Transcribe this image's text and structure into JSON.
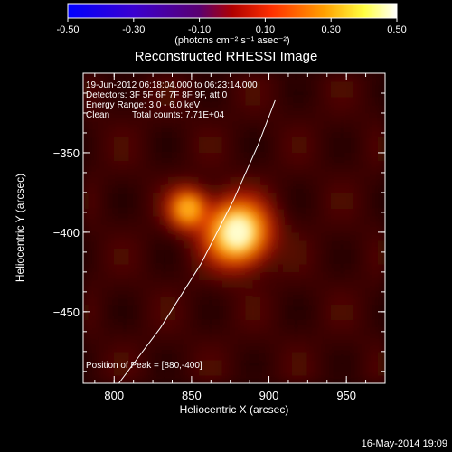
{
  "colorbar": {
    "ticks": [
      "-0.50",
      "-0.30",
      "-0.10",
      "0.10",
      "0.30",
      "0.50"
    ],
    "units": "(photons cm⁻² s⁻¹ asec⁻²)",
    "range": [
      -0.5,
      0.5
    ],
    "colormap": [
      "#0000ff",
      "#4b00c8",
      "#7d0096",
      "#ff2a00",
      "#ffa000",
      "#ffff00",
      "#ffffff"
    ]
  },
  "title": "Reconstructed RHESSI Image",
  "annotations": {
    "line1": "19-Jun-2012 06:18:04.000 to 06:23:14.000",
    "line2": "Detectors: 3F 5F 6F 7F 8F 9F, att 0",
    "line3": "Energy Range: 3.0 - 6.0 keV",
    "line4_method": "Clean",
    "line4_counts": "Total counts: 7.71E+04",
    "peak": "Position of Peak = [880,-400]"
  },
  "footer": {
    "timestamp": "16-May-2014 19:09"
  },
  "chart_data": {
    "type": "heatmap",
    "title": "Reconstructed RHESSI Image",
    "xlabel": "Heliocentric X (arcsec)",
    "ylabel": "Heliocentric Y (arcsec)",
    "xlim": [
      780,
      975
    ],
    "ylim": [
      -495,
      -300
    ],
    "x_ticks": [
      800,
      850,
      900,
      950
    ],
    "y_ticks": [
      -350,
      -400,
      -450
    ],
    "x_tick_labels": [
      "800",
      "850",
      "900",
      "950"
    ],
    "y_tick_labels": [
      "−350",
      "−400",
      "−450"
    ],
    "sources": [
      {
        "x": 880,
        "y": -400,
        "peak": 0.5,
        "sigma": 13
      },
      {
        "x": 848,
        "y": -385,
        "peak": 0.33,
        "sigma": 8
      }
    ],
    "background": 0.04,
    "limb_curve": [
      [
        803,
        -495
      ],
      [
        830,
        -460
      ],
      [
        856,
        -420
      ],
      [
        877,
        -380
      ],
      [
        893,
        -345
      ],
      [
        904,
        -317
      ]
    ],
    "peak_position": [
      880,
      -400
    ]
  }
}
